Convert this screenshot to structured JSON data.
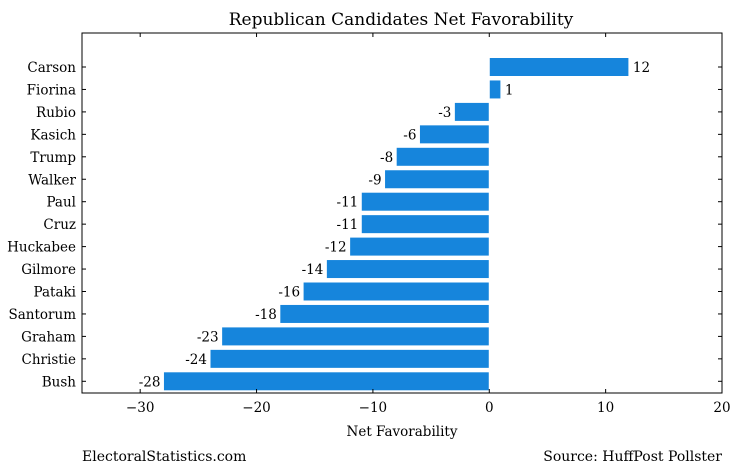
{
  "chart_data": {
    "type": "bar",
    "orientation": "horizontal",
    "title": "Republican Candidates Net Favorability",
    "xlabel": "Net Favorability",
    "ylabel": "",
    "categories": [
      "Carson",
      "Fiorina",
      "Rubio",
      "Kasich",
      "Trump",
      "Walker",
      "Paul",
      "Cruz",
      "Huckabee",
      "Gilmore",
      "Pataki",
      "Santorum",
      "Graham",
      "Christie",
      "Bush"
    ],
    "values": [
      12,
      1,
      -3,
      -6,
      -8,
      -9,
      -11,
      -11,
      -12,
      -14,
      -16,
      -18,
      -23,
      -24,
      -28
    ],
    "xlim": [
      -35,
      20
    ],
    "xticks": [
      -30,
      -20,
      -10,
      0,
      10,
      20
    ],
    "xtick_labels": [
      "−30",
      "−20",
      "−10",
      "0",
      "10",
      "20"
    ],
    "grid": false,
    "bar_color": "#1685dc"
  },
  "footer": {
    "left": "ElectoralStatistics.com",
    "right": "Source: HuffPost Pollster"
  }
}
